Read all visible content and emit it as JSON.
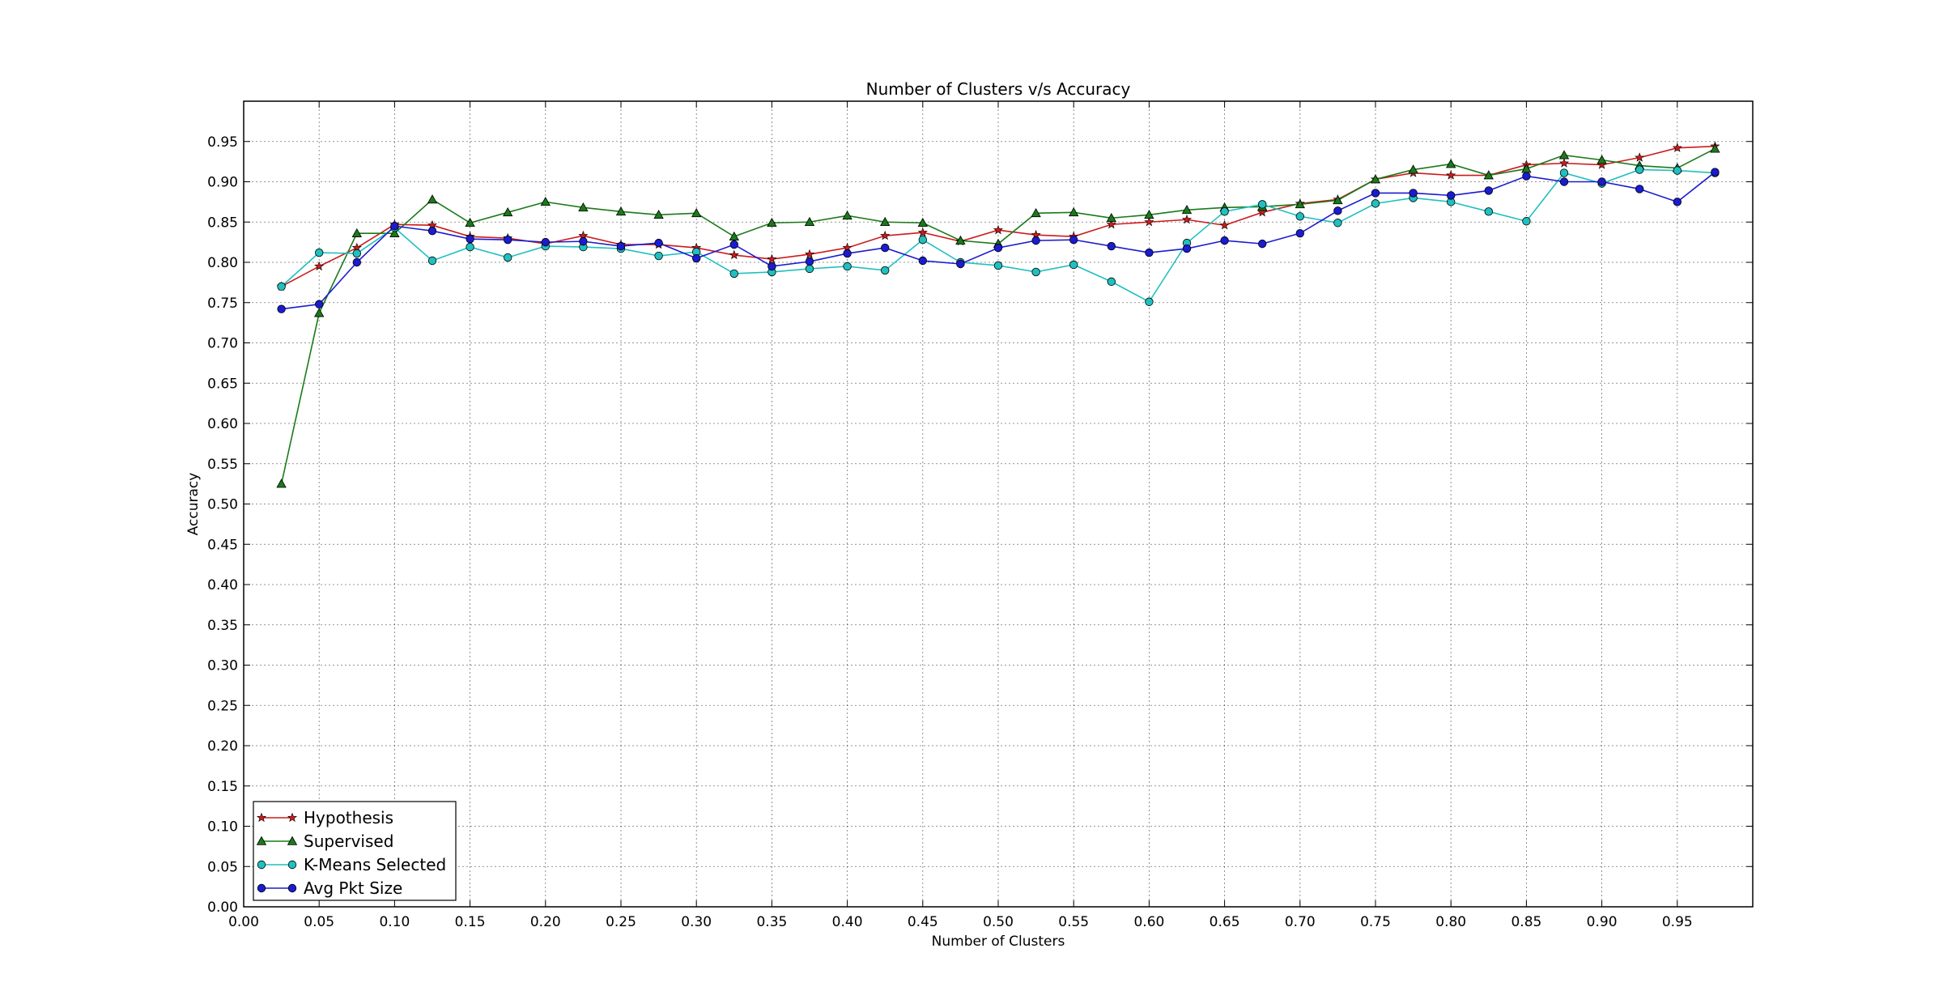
{
  "colors": {
    "background": "#ffffff",
    "grid": "#000000",
    "hypothesis": "#cc1b1b",
    "supervised": "#1a7a1a",
    "kmeans": "#20c0c0",
    "avgpkt": "#1b1bd0"
  },
  "chart_data": {
    "type": "line",
    "title": "Number of Clusters v/s Accuracy",
    "xlabel": "Number of Clusters",
    "ylabel": "Accuracy",
    "xlim": [
      0.0,
      1.0
    ],
    "ylim": [
      0.0,
      1.0
    ],
    "x_ticks": [
      0.0,
      0.05,
      0.1,
      0.15,
      0.2,
      0.25,
      0.3,
      0.35,
      0.4,
      0.45,
      0.5,
      0.55,
      0.6,
      0.65,
      0.7,
      0.75,
      0.8,
      0.85,
      0.9,
      0.95
    ],
    "x_tick_labels": [
      "0.00",
      "0.05",
      "0.10",
      "0.15",
      "0.20",
      "0.25",
      "0.30",
      "0.35",
      "0.40",
      "0.45",
      "0.50",
      "0.55",
      "0.60",
      "0.65",
      "0.70",
      "0.75",
      "0.80",
      "0.85",
      "0.90",
      "0.95"
    ],
    "y_ticks": [
      0.0,
      0.05,
      0.1,
      0.15,
      0.2,
      0.25,
      0.3,
      0.35,
      0.4,
      0.45,
      0.5,
      0.55,
      0.6,
      0.65,
      0.7,
      0.75,
      0.8,
      0.85,
      0.9,
      0.95
    ],
    "y_tick_labels": [
      "0.00",
      "0.05",
      "0.10",
      "0.15",
      "0.20",
      "0.25",
      "0.30",
      "0.35",
      "0.40",
      "0.45",
      "0.50",
      "0.55",
      "0.60",
      "0.65",
      "0.70",
      "0.75",
      "0.80",
      "0.85",
      "0.90",
      "0.95"
    ],
    "grid": true,
    "legend_position": "lower-left",
    "x": [
      0.025,
      0.05,
      0.075,
      0.1,
      0.125,
      0.15,
      0.175,
      0.2,
      0.225,
      0.25,
      0.275,
      0.3,
      0.325,
      0.35,
      0.375,
      0.4,
      0.425,
      0.45,
      0.475,
      0.5,
      0.525,
      0.55,
      0.575,
      0.6,
      0.625,
      0.65,
      0.675,
      0.7,
      0.725,
      0.75,
      0.775,
      0.8,
      0.825,
      0.85,
      0.875,
      0.9,
      0.925,
      0.95,
      0.975
    ],
    "series": [
      {
        "name": "Hypothesis",
        "marker": "star",
        "color": "#cc1b1b",
        "values": [
          0.77,
          0.795,
          0.818,
          0.847,
          0.846,
          0.832,
          0.83,
          0.823,
          0.833,
          0.822,
          0.822,
          0.818,
          0.809,
          0.804,
          0.81,
          0.818,
          0.833,
          0.837,
          0.826,
          0.84,
          0.834,
          0.832,
          0.847,
          0.85,
          0.853,
          0.846,
          0.862,
          0.873,
          0.878,
          0.903,
          0.911,
          0.908,
          0.908,
          0.921,
          0.923,
          0.921,
          0.93,
          0.942,
          0.944
        ]
      },
      {
        "name": "Supervised",
        "marker": "triangle",
        "color": "#1a7a1a",
        "values": [
          0.525,
          0.737,
          0.836,
          0.836,
          0.878,
          0.849,
          0.862,
          0.875,
          0.868,
          0.863,
          0.859,
          0.861,
          0.832,
          0.849,
          0.85,
          0.858,
          0.85,
          0.849,
          0.827,
          0.823,
          0.861,
          0.862,
          0.855,
          0.859,
          0.865,
          0.868,
          0.869,
          0.872,
          0.877,
          0.903,
          0.915,
          0.922,
          0.908,
          0.916,
          0.933,
          0.927,
          0.92,
          0.917,
          0.941
        ]
      },
      {
        "name": "K-Means Selected",
        "marker": "circle",
        "color": "#20c0c0",
        "values": [
          0.77,
          0.812,
          0.811,
          0.843,
          0.802,
          0.819,
          0.806,
          0.82,
          0.819,
          0.817,
          0.808,
          0.813,
          0.786,
          0.788,
          0.792,
          0.795,
          0.79,
          0.828,
          0.8,
          0.796,
          0.788,
          0.797,
          0.776,
          0.751,
          0.824,
          0.863,
          0.872,
          0.857,
          0.849,
          0.873,
          0.88,
          0.875,
          0.863,
          0.851,
          0.911,
          0.898,
          0.915,
          0.914,
          0.911
        ]
      },
      {
        "name": "Avg Pkt Size",
        "marker": "circle",
        "color": "#1b1bd0",
        "values": [
          0.742,
          0.748,
          0.8,
          0.845,
          0.839,
          0.829,
          0.828,
          0.825,
          0.826,
          0.82,
          0.824,
          0.805,
          0.822,
          0.795,
          0.801,
          0.811,
          0.818,
          0.802,
          0.798,
          0.818,
          0.827,
          0.828,
          0.82,
          0.812,
          0.817,
          0.827,
          0.823,
          0.836,
          0.864,
          0.886,
          0.886,
          0.883,
          0.889,
          0.907,
          0.9,
          0.9,
          0.891,
          0.875,
          0.912
        ]
      }
    ]
  }
}
